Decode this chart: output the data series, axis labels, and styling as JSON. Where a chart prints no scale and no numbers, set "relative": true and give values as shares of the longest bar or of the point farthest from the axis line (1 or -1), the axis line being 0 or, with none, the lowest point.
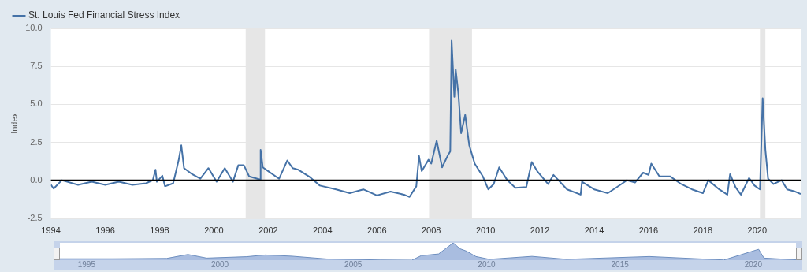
{
  "chart_data": [
    {
      "type": "line",
      "ylabel": "Index",
      "legend": "top left",
      "grid": "y",
      "marker": "none",
      "xlim": [
        1994,
        2021.6
      ],
      "xticks": [
        1994,
        1996,
        1998,
        2000,
        2002,
        2004,
        2006,
        2008,
        2010,
        2012,
        2014,
        2016,
        2018,
        2020
      ],
      "ylim": [
        -2.5,
        10
      ],
      "yticks": [
        -2.5,
        {
          "value": 0,
          "label": "0.0"
        },
        2.5,
        {
          "value": 5,
          "label": "5.0"
        },
        7.5,
        {
          "value": 10,
          "label": "10.0"
        }
      ],
      "bands": [
        {
          "axis": "x",
          "from": 2001.17,
          "to": 2001.88,
          "color": "#e6e6e6"
        },
        {
          "axis": "x",
          "from": 2007.92,
          "to": 2009.5,
          "color": "#e6e6e6"
        },
        {
          "axis": "x",
          "from": 2020.1,
          "to": 2020.3,
          "color": "#e6e6e6"
        }
      ],
      "ref_lines": [
        {
          "axis": "y",
          "value": 0,
          "color": "#000000"
        }
      ],
      "series": [
        {
          "name": "St. Louis Fed Financial Stress Index",
          "color": "#4572a7",
          "x": [
            1994.0,
            1994.1,
            1994.4,
            1995.0,
            1995.5,
            1996.0,
            1996.5,
            1997.0,
            1997.5,
            1997.75,
            1997.85,
            1997.9,
            1998.1,
            1998.2,
            1998.5,
            1998.7,
            1998.8,
            1998.9,
            1999.2,
            1999.5,
            1999.8,
            2000.1,
            2000.4,
            2000.7,
            2000.9,
            2001.1,
            2001.3,
            2001.7,
            2001.72,
            2001.8,
            2002.0,
            2002.4,
            2002.7,
            2002.9,
            2003.1,
            2003.5,
            2003.9,
            2004.5,
            2005.0,
            2005.5,
            2006.0,
            2006.5,
            2007.0,
            2007.2,
            2007.45,
            2007.55,
            2007.65,
            2007.9,
            2008.0,
            2008.2,
            2008.4,
            2008.6,
            2008.7,
            2008.75,
            2008.85,
            2008.9,
            2009.0,
            2009.1,
            2009.25,
            2009.4,
            2009.6,
            2009.9,
            2010.1,
            2010.3,
            2010.5,
            2010.8,
            2011.1,
            2011.5,
            2011.7,
            2011.9,
            2012.3,
            2012.5,
            2013.0,
            2013.5,
            2013.55,
            2014.0,
            2014.5,
            2015.0,
            2015.2,
            2015.5,
            2015.8,
            2016.0,
            2016.1,
            2016.4,
            2016.8,
            2017.2,
            2017.6,
            2018.0,
            2018.2,
            2018.6,
            2018.9,
            2019.0,
            2019.2,
            2019.4,
            2019.7,
            2019.9,
            2020.1,
            2020.2,
            2020.3,
            2020.4,
            2020.6,
            2020.9,
            2021.1,
            2021.4,
            2021.6
          ],
          "values": [
            -0.3,
            -0.55,
            0.0,
            -0.3,
            -0.1,
            -0.3,
            -0.1,
            -0.3,
            -0.2,
            0.0,
            0.7,
            -0.1,
            0.3,
            -0.4,
            -0.2,
            1.3,
            2.3,
            0.8,
            0.4,
            0.1,
            0.8,
            -0.1,
            0.8,
            -0.1,
            1.0,
            1.0,
            0.25,
            0.05,
            2.0,
            0.85,
            0.6,
            0.1,
            1.3,
            0.8,
            0.7,
            0.25,
            -0.35,
            -0.6,
            -0.85,
            -0.6,
            -1.0,
            -0.75,
            -0.95,
            -1.1,
            -0.4,
            1.6,
            0.6,
            1.35,
            1.1,
            2.6,
            0.85,
            1.6,
            1.9,
            9.2,
            5.5,
            7.3,
            5.7,
            3.1,
            4.3,
            2.3,
            1.1,
            0.25,
            -0.6,
            -0.25,
            0.85,
            0.0,
            -0.5,
            -0.45,
            1.2,
            0.6,
            -0.25,
            0.35,
            -0.6,
            -0.95,
            -0.1,
            -0.6,
            -0.85,
            -0.25,
            0.0,
            -0.15,
            0.5,
            0.35,
            1.1,
            0.25,
            0.25,
            -0.25,
            -0.6,
            -0.85,
            0.0,
            -0.6,
            -0.95,
            0.4,
            -0.45,
            -0.95,
            0.15,
            -0.35,
            -0.6,
            5.4,
            2.0,
            0.1,
            -0.25,
            0.0,
            -0.6,
            -0.75,
            -0.9
          ]
        }
      ]
    },
    {
      "type": "area",
      "relative": true,
      "xlim": [
        1994,
        2021.6
      ],
      "xticks": [
        1995,
        2000,
        2005,
        2010,
        2015,
        2020
      ],
      "series": [
        {
          "color": "#6d8ebf",
          "x": [
            1994,
            1996,
            1998,
            1998.8,
            1999.5,
            2001,
            2001.7,
            2002.7,
            2004,
            2006,
            2007.2,
            2007.55,
            2008.2,
            2008.75,
            2009.0,
            2009.25,
            2009.6,
            2010.1,
            2011.7,
            2013,
            2016.1,
            2018.9,
            2020.2,
            2020.4,
            2021.6
          ],
          "values": [
            0.08,
            0.08,
            0.1,
            0.33,
            0.12,
            0.2,
            0.3,
            0.23,
            0.07,
            0.01,
            0.0,
            0.26,
            0.36,
            1.0,
            0.66,
            0.52,
            0.21,
            0.05,
            0.22,
            0.05,
            0.21,
            0.01,
            0.63,
            0.12,
            0.02
          ]
        }
      ]
    }
  ]
}
